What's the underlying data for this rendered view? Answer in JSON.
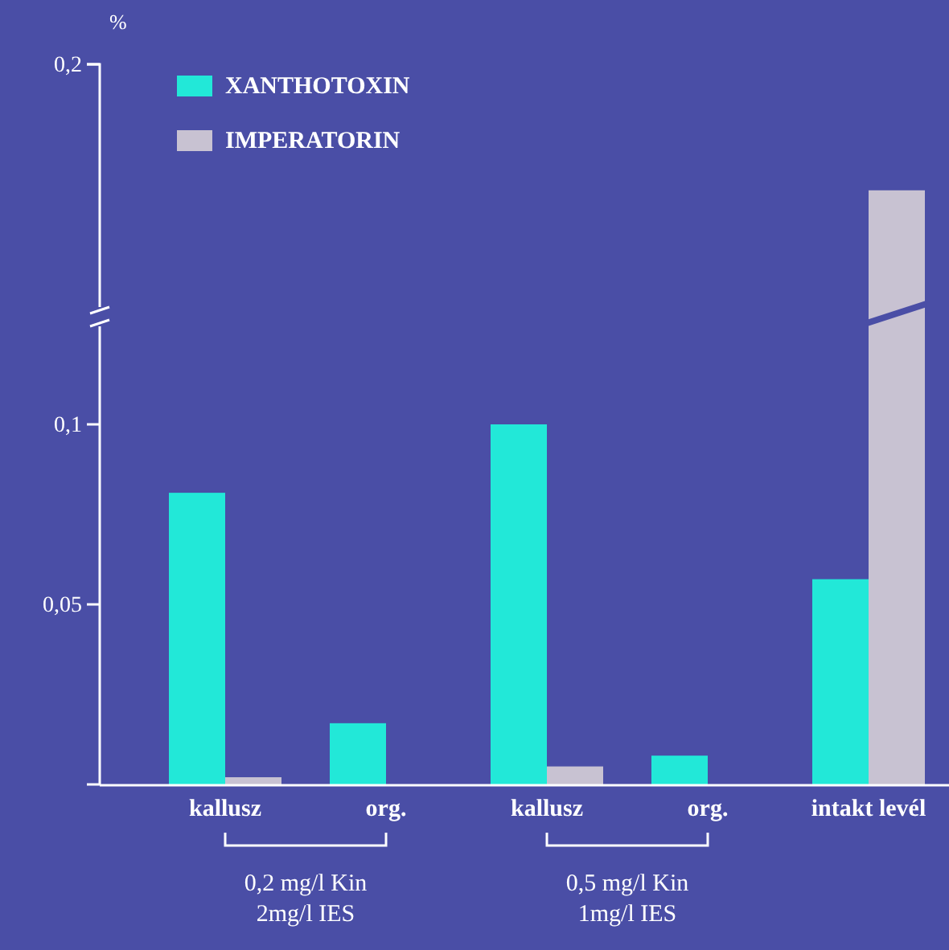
{
  "chart_data": {
    "type": "bar",
    "ylabel": "%",
    "categories": [
      "kallusz",
      "org.",
      "kallusz",
      "org.",
      "intakt levél"
    ],
    "series": [
      {
        "name": "XANTHOTOXIN",
        "color": "#22e8d8",
        "values": [
          0.081,
          0.017,
          0.1,
          0.008,
          0.057
        ]
      },
      {
        "name": "IMPERATORIN",
        "color": "#c8c2d2",
        "values": [
          0.002,
          null,
          0.005,
          null,
          0.165
        ]
      }
    ],
    "ylim": [
      0,
      0.2
    ],
    "yticks": [
      {
        "value": 0.05,
        "label": "0,05"
      },
      {
        "value": 0.1,
        "label": "0,1"
      },
      {
        "value": 0.2,
        "label": "0,2"
      }
    ],
    "legend": "top left",
    "annotations": [
      "0,2 mg/l Kin\n2mg/l IES",
      "0,5 mg/l Kin\n1mg/l IES"
    ]
  }
}
